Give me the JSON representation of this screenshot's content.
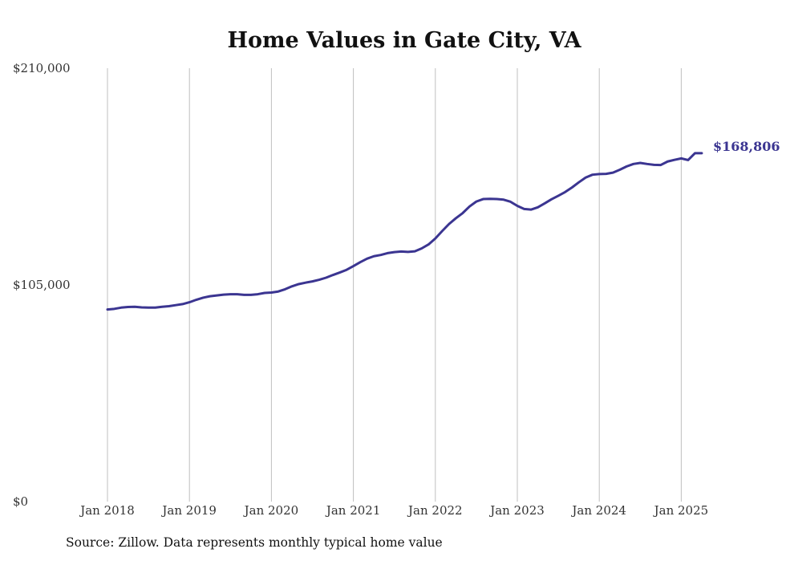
{
  "chart_data": {
    "type": "line",
    "title": "Home Values in Gate City, VA",
    "xlabel": "",
    "ylabel": "",
    "ylim": [
      0,
      210000
    ],
    "y_ticks": [
      {
        "value": 0,
        "label": "$0"
      },
      {
        "value": 105000,
        "label": "$105,000"
      },
      {
        "value": 210000,
        "label": "$210,000"
      }
    ],
    "x_ticks": [
      {
        "value": "2018-01",
        "label": "Jan 2018"
      },
      {
        "value": "2019-01",
        "label": "Jan 2019"
      },
      {
        "value": "2020-01",
        "label": "Jan 2020"
      },
      {
        "value": "2021-01",
        "label": "Jan 2021"
      },
      {
        "value": "2022-01",
        "label": "Jan 2022"
      },
      {
        "value": "2023-01",
        "label": "Jan 2023"
      },
      {
        "value": "2024-01",
        "label": "Jan 2024"
      },
      {
        "value": "2025-01",
        "label": "Jan 2025"
      }
    ],
    "grid": "vertical at year ticks",
    "line_color": "#3b3591",
    "end_label": "$168,806",
    "series": [
      {
        "x": [
          "2018-01",
          "2018-02",
          "2018-03",
          "2018-04",
          "2018-05",
          "2018-06",
          "2018-07",
          "2018-08",
          "2018-09",
          "2018-10",
          "2018-11",
          "2018-12",
          "2019-01",
          "2019-02",
          "2019-03",
          "2019-04",
          "2019-05",
          "2019-06",
          "2019-07",
          "2019-08",
          "2019-09",
          "2019-10",
          "2019-11",
          "2019-12",
          "2020-01",
          "2020-02",
          "2020-03",
          "2020-04",
          "2020-05",
          "2020-06",
          "2020-07",
          "2020-08",
          "2020-09",
          "2020-10",
          "2020-11",
          "2020-12",
          "2021-01",
          "2021-02",
          "2021-03",
          "2021-04",
          "2021-05",
          "2021-06",
          "2021-07",
          "2021-08",
          "2021-09",
          "2021-10",
          "2021-11",
          "2021-12",
          "2022-01",
          "2022-02",
          "2022-03",
          "2022-04",
          "2022-05",
          "2022-06",
          "2022-07",
          "2022-08",
          "2022-09",
          "2022-10",
          "2022-11",
          "2022-12",
          "2023-01",
          "2023-02",
          "2023-03",
          "2023-04",
          "2023-05",
          "2023-06",
          "2023-07",
          "2023-08",
          "2023-09",
          "2023-10",
          "2023-11",
          "2023-12",
          "2024-01",
          "2024-02",
          "2024-03",
          "2024-04",
          "2024-05",
          "2024-06",
          "2024-07",
          "2024-08",
          "2024-09",
          "2024-10",
          "2024-11",
          "2024-12",
          "2025-01",
          "2025-02",
          "2025-03",
          "2025-04"
        ],
        "values": [
          93100,
          93400,
          94000,
          94300,
          94400,
          94100,
          94000,
          94000,
          94400,
          94700,
          95200,
          95700,
          96600,
          97800,
          98800,
          99500,
          99900,
          100300,
          100500,
          100500,
          100200,
          100200,
          100500,
          101100,
          101300,
          101800,
          102900,
          104300,
          105400,
          106100,
          106700,
          107500,
          108500,
          109800,
          111000,
          112300,
          114100,
          116000,
          117700,
          118900,
          119500,
          120400,
          120900,
          121200,
          121000,
          121300,
          122700,
          124600,
          127500,
          131100,
          134500,
          137300,
          139800,
          143000,
          145400,
          146600,
          146700,
          146600,
          146300,
          145300,
          143300,
          141800,
          141500,
          142600,
          144500,
          146500,
          148200,
          150000,
          152200,
          154700,
          157000,
          158400,
          158700,
          158800,
          159400,
          160800,
          162400,
          163600,
          164100,
          163600,
          163200,
          163100,
          164800,
          165600,
          166300,
          165500,
          168806,
          168806
        ]
      }
    ]
  },
  "source_note": "Source: Zillow. Data represents monthly typical home value"
}
